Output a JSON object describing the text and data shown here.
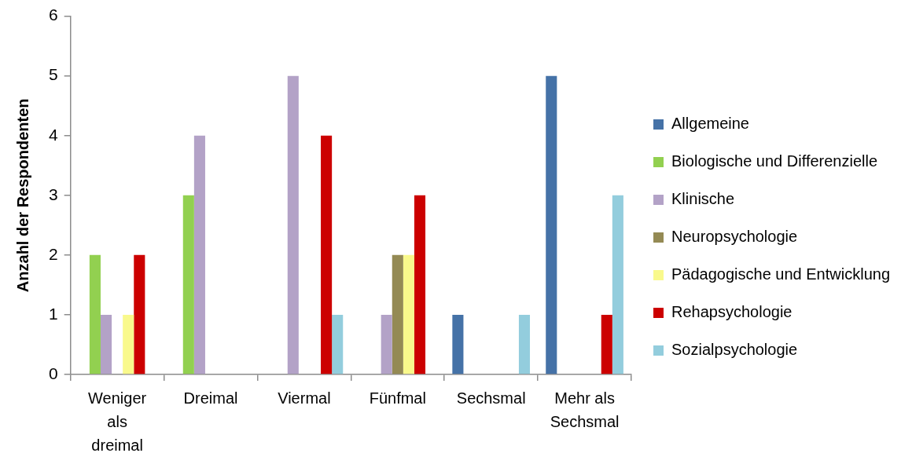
{
  "chart_data": {
    "type": "bar",
    "ylabel": "Anzahl der Respondenten",
    "categories": [
      "Weniger als dreimal",
      "Dreimal",
      "Viermal",
      "Fünfmal",
      "Sechsmal",
      "Mehr als Sechsmal"
    ],
    "series": [
      {
        "name": "Allgemeine",
        "color": "#4572a7",
        "values": [
          0,
          0,
          0,
          0,
          1,
          5
        ]
      },
      {
        "name": "Biologische und Differenzielle",
        "color": "#92d050",
        "values": [
          2,
          3,
          0,
          0,
          0,
          0
        ]
      },
      {
        "name": "Klinische",
        "color": "#b3a2c7",
        "values": [
          1,
          4,
          5,
          1,
          0,
          0
        ]
      },
      {
        "name": "Neuropsychologie",
        "color": "#948a54",
        "values": [
          0,
          0,
          0,
          2,
          0,
          0
        ]
      },
      {
        "name": "Pädagogische und Entwicklung",
        "color": "#f9f98c",
        "values": [
          1,
          0,
          0,
          2,
          0,
          0
        ]
      },
      {
        "name": "Rehapsychologie",
        "color": "#cc0000",
        "values": [
          2,
          0,
          4,
          3,
          0,
          1
        ]
      },
      {
        "name": "Sozialpsychologie",
        "color": "#93cddd",
        "values": [
          0,
          0,
          1,
          0,
          1,
          3
        ]
      }
    ],
    "ylim": [
      0,
      6
    ],
    "yticks": [
      0,
      1,
      2,
      3,
      4,
      5,
      6
    ],
    "grid": false,
    "legend": "right"
  }
}
